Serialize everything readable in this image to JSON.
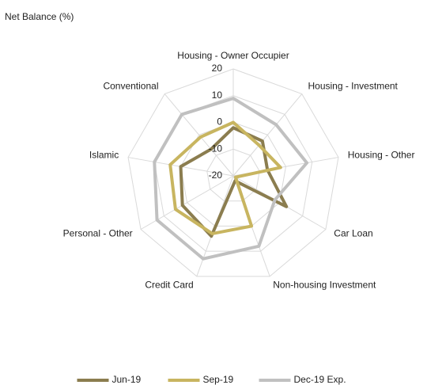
{
  "chart_data": {
    "type": "radar",
    "title": "Net Balance (%)",
    "categories": [
      "Housing - Owner Occupier",
      "Housing - Investment",
      "Housing - Other",
      "Car Loan",
      "Non-housing Investment",
      "Credit Card",
      "Personal - Other",
      "Islamic",
      "Conventional"
    ],
    "series": [
      {
        "name": "Jun-19",
        "color": "#8b7d4f",
        "values": [
          -2,
          -3,
          -7,
          3,
          -18,
          4,
          2,
          0,
          -7
        ]
      },
      {
        "name": "Sep-19",
        "color": "#c8b560",
        "values": [
          0,
          -5,
          -2,
          -19,
          0,
          3,
          5,
          4,
          -1
        ]
      },
      {
        "name": "Dec-19 Exp.",
        "color": "#c0c0c0",
        "values": [
          9,
          5,
          8,
          -2,
          8,
          13,
          13,
          10,
          10
        ]
      }
    ],
    "ylim": [
      -20,
      20
    ],
    "yticks": [
      -20,
      -10,
      0,
      10,
      20
    ],
    "grid": true,
    "legend": "bottom"
  }
}
